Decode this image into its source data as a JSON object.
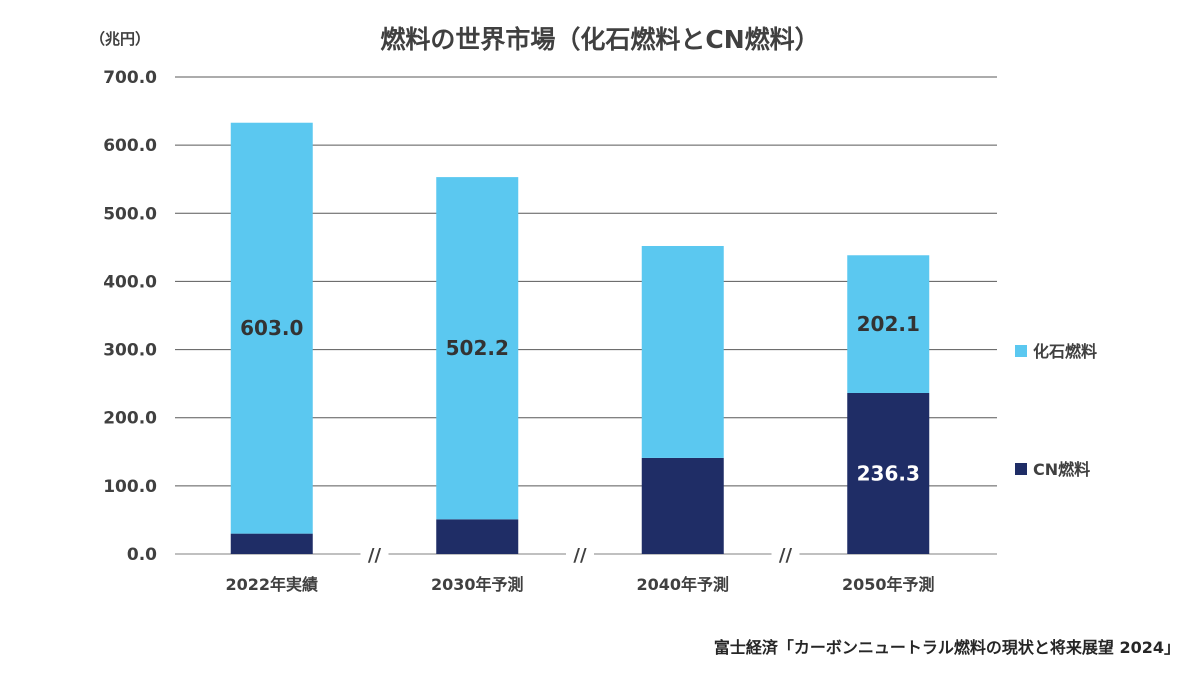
{
  "chart_data": {
    "type": "bar",
    "stacked": true,
    "title": "燃料の世界市場（化石燃料とCN燃料）",
    "unit_label": "（兆円）",
    "categories": [
      "2022年実績",
      "2030年予測",
      "2040年予測",
      "2050年予測"
    ],
    "series": [
      {
        "name": "CN燃料",
        "color": "#1f2d66",
        "values": [
          29.9,
          50.9,
          141,
          236.3
        ],
        "labels": [
          "29.9",
          "50.9",
          "",
          "236.3"
        ]
      },
      {
        "name": "化石燃料",
        "color": "#5bc8f0",
        "values": [
          603.0,
          502.2,
          311,
          202.1
        ],
        "labels": [
          "603.0",
          "502.2",
          "",
          "202.1"
        ]
      }
    ],
    "ylim": [
      0,
      700
    ],
    "yticks": [
      "0.0",
      "100.0",
      "200.0",
      "300.0",
      "400.0",
      "500.0",
      "600.0",
      "700.0"
    ],
    "grid": true,
    "legend_position": "right",
    "axis_break_symbol": "//",
    "source": "富士経済「カーボンニュートラル燃料の現状と将来展望 2024」"
  }
}
